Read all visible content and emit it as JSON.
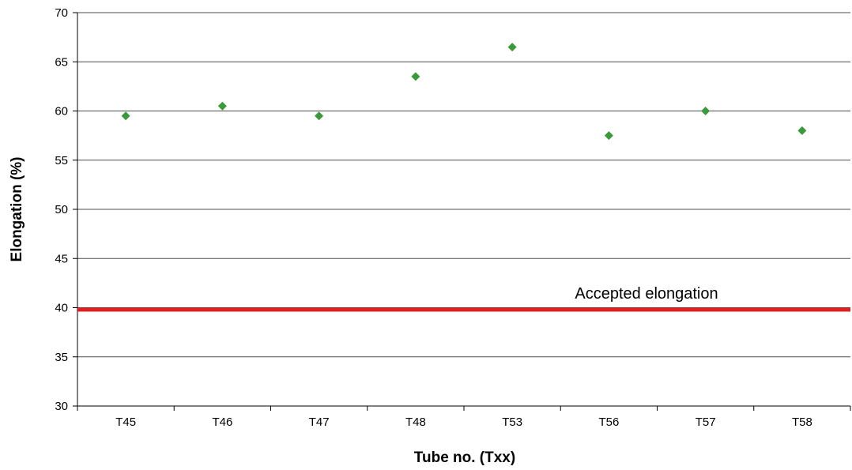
{
  "chart_data": {
    "type": "scatter",
    "title": "",
    "xlabel": "Tube no. (Txx)",
    "ylabel": "Elongation (%)",
    "categories": [
      "T45",
      "T46",
      "T47",
      "T48",
      "T53",
      "T56",
      "T57",
      "T58"
    ],
    "series": [
      {
        "values": [
          59.5,
          60.5,
          59.5,
          63.5,
          66.5,
          57.5,
          60.0,
          58.0
        ],
        "color": "#3a9a3a",
        "marker": "diamond"
      }
    ],
    "ylim": [
      30,
      70
    ],
    "yticks": [
      "30",
      "35",
      "40",
      "45",
      "50",
      "55",
      "60",
      "65",
      "70"
    ],
    "grid": "horizontal",
    "reference_line": {
      "value": 39.8,
      "label": "Accepted elongation",
      "color": "#e02020"
    }
  }
}
